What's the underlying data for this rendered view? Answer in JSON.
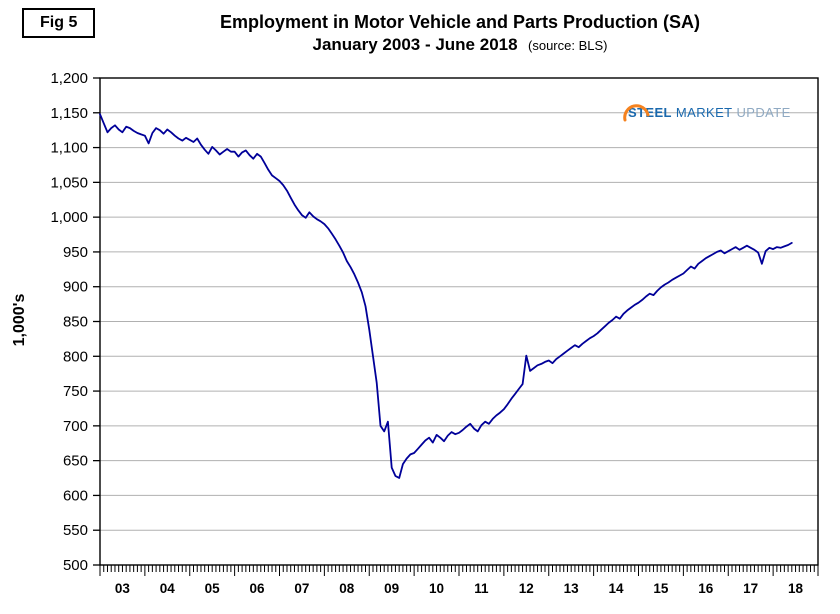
{
  "figure": {
    "label": "Fig 5"
  },
  "title": {
    "line1": "Employment in Motor Vehicle and Parts Production (SA)",
    "line2": "January 2003 - June 2018",
    "source": "(source: BLS)"
  },
  "y_axis": {
    "title": "1,000's"
  },
  "logo": {
    "word1": "STEEL",
    "word2": "MARKET",
    "word3": "UPDATE",
    "accent_color": "#f5821f",
    "blue": "#1968ad",
    "light": "#8fa9c2"
  },
  "chart_data": {
    "type": "line",
    "title": "Employment in Motor Vehicle and Parts Production (SA), January 2003 - June 2018",
    "source": "BLS",
    "xlabel": "",
    "ylabel": "1,000's",
    "ylim": [
      500,
      1200
    ],
    "ytick_step": 50,
    "x_start": "Jan 2003",
    "x_end": "Jun 2018",
    "x_frequency": "monthly",
    "x_year_labels": [
      "03",
      "04",
      "05",
      "06",
      "07",
      "08",
      "09",
      "10",
      "11",
      "12",
      "13",
      "14",
      "15",
      "16",
      "17",
      "18"
    ],
    "grid": "horizontal",
    "grid_color": "#b0b0b0",
    "line_color": "#000099",
    "legend": "none",
    "series": [
      {
        "name": "Motor vehicle and parts employment (1,000's, SA)",
        "values": [
          1148,
          1135,
          1122,
          1128,
          1132,
          1126,
          1122,
          1130,
          1128,
          1124,
          1121,
          1119,
          1117,
          1106,
          1121,
          1128,
          1125,
          1120,
          1126,
          1122,
          1117,
          1113,
          1110,
          1114,
          1111,
          1108,
          1113,
          1104,
          1097,
          1091,
          1101,
          1096,
          1090,
          1094,
          1098,
          1094,
          1094,
          1087,
          1093,
          1096,
          1089,
          1084,
          1091,
          1087,
          1078,
          1068,
          1060,
          1056,
          1052,
          1046,
          1038,
          1028,
          1018,
          1010,
          1003,
          999,
          1007,
          1001,
          997,
          994,
          990,
          984,
          976,
          968,
          959,
          949,
          937,
          928,
          918,
          906,
          892,
          872,
          838,
          800,
          762,
          700,
          692,
          706,
          640,
          628,
          625,
          645,
          653,
          659,
          661,
          667,
          673,
          679,
          683,
          676,
          687,
          683,
          678,
          686,
          691,
          688,
          690,
          694,
          699,
          703,
          696,
          692,
          701,
          706,
          703,
          710,
          715,
          719,
          724,
          731,
          739,
          746,
          753,
          760,
          801,
          779,
          783,
          787,
          789,
          792,
          794,
          790,
          796,
          800,
          804,
          808,
          812,
          816,
          813,
          818,
          822,
          826,
          829,
          833,
          838,
          843,
          848,
          852,
          857,
          854,
          861,
          866,
          870,
          874,
          877,
          881,
          886,
          890,
          888,
          894,
          899,
          903,
          906,
          910,
          913,
          916,
          919,
          924,
          929,
          926,
          933,
          937,
          941,
          944,
          947,
          950,
          952,
          948,
          951,
          954,
          957,
          953,
          956,
          959,
          956,
          953,
          949,
          933,
          951,
          956,
          954,
          957,
          956,
          958,
          960,
          963
        ]
      }
    ]
  }
}
